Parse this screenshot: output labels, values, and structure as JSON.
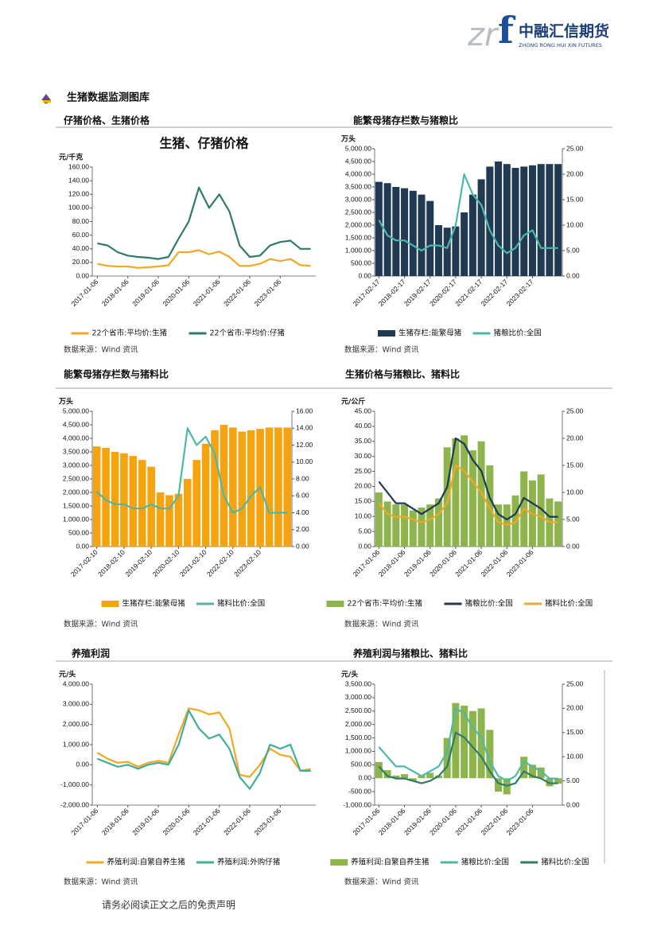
{
  "header": {
    "logo_left": "zr",
    "logo_right": "f",
    "company": "中融汇信期货",
    "company_en": "ZHONG RONG HUI XIN FUTURES"
  },
  "section_title": "生猪数据监测图库",
  "panels": [
    {
      "heading": "仔猪价格、生猪价格",
      "source": "数据来源：Wind 资讯"
    },
    {
      "heading": "能繁母猪存栏数与猪粮比",
      "source": "数据来源：Wind 资讯"
    },
    {
      "heading": "能繁母猪存栏数与猪料比",
      "source": "数据来源：Wind 资讯"
    },
    {
      "heading": "生猪价格与猪粮比、猪料比",
      "source": "数据来源：Wind 资讯"
    },
    {
      "heading": "养殖利润",
      "source": "数据来源：Wind 资讯"
    },
    {
      "heading": "养殖利润与猪粮比、猪料比",
      "source": "数据来源：Wind 资讯"
    }
  ],
  "chart_data": [
    {
      "type": "line",
      "title": "生猪、仔猪价格",
      "unit": "元/千克",
      "categories": [
        "2017-01-06",
        null,
        null,
        "2018-01-06",
        null,
        null,
        "2019-01-06",
        null,
        null,
        "2020-01-06",
        null,
        null,
        "2021-01-06",
        null,
        null,
        "2022-01-06",
        null,
        null,
        "2023-01-06",
        null,
        null,
        null
      ],
      "ylim": [
        0,
        160
      ],
      "yticks": [
        {
          "value": 0,
          "label": "0.00"
        },
        {
          "value": 20,
          "label": "20.00"
        },
        {
          "value": 40,
          "label": "40.00"
        },
        {
          "value": 60,
          "label": "60.00"
        },
        {
          "value": 80,
          "label": "80.00"
        },
        {
          "value": 100,
          "label": "100.00"
        },
        {
          "value": 120,
          "label": "120.00"
        },
        {
          "value": 140,
          "label": "140.00"
        },
        {
          "value": 160,
          "label": "160.00"
        }
      ],
      "series": [
        {
          "name": "22个省市:平均价:生猪",
          "kind": "line",
          "color": "#f5a623",
          "values": [
            18,
            15,
            14,
            14,
            12,
            13,
            14,
            16,
            35,
            35,
            38,
            32,
            36,
            28,
            15,
            15,
            18,
            25,
            22,
            25,
            16,
            15
          ]
        },
        {
          "name": "22个省市:平均价:仔猪",
          "kind": "line",
          "color": "#2e7b6a",
          "values": [
            48,
            45,
            35,
            30,
            28,
            27,
            25,
            28,
            55,
            80,
            130,
            100,
            120,
            95,
            45,
            28,
            30,
            45,
            50,
            52,
            40,
            40
          ]
        }
      ]
    },
    {
      "type": "combo",
      "unit": "万头",
      "categories": [
        "2017-02-17",
        null,
        null,
        "2018-02-17",
        null,
        null,
        "2019-02-17",
        null,
        null,
        "2020-02-17",
        null,
        null,
        "2021-02-17",
        null,
        null,
        "2022-02-17",
        null,
        null,
        "2023-02-17",
        null,
        null,
        null
      ],
      "ylim": [
        0,
        5000
      ],
      "yticks": [
        {
          "value": 0,
          "label": "0.00"
        },
        {
          "value": 500,
          "label": "500.00"
        },
        {
          "value": 1000,
          "label": "1,000.00"
        },
        {
          "value": 1500,
          "label": "1,500.00"
        },
        {
          "value": 2000,
          "label": "2,000.00"
        },
        {
          "value": 2500,
          "label": "2,500.00"
        },
        {
          "value": 3000,
          "label": "3,000.00"
        },
        {
          "value": 3500,
          "label": "3,500.00"
        },
        {
          "value": 4000,
          "label": "4,000.00"
        },
        {
          "value": 4500,
          "label": "4,500.00"
        },
        {
          "value": 5000,
          "label": "5,000.00"
        }
      ],
      "y2lim": [
        0,
        25
      ],
      "y2ticks": [
        {
          "value": 0,
          "label": "0.00"
        },
        {
          "value": 5,
          "label": "5.00"
        },
        {
          "value": 10,
          "label": "10.00"
        },
        {
          "value": 15,
          "label": "15.00"
        },
        {
          "value": 20,
          "label": "20.00"
        },
        {
          "value": 25,
          "label": "25.00"
        }
      ],
      "series": [
        {
          "name": "生猪存栏:能繁母猪",
          "kind": "bar",
          "color": "#1f3a52",
          "values": [
            3700,
            3650,
            3500,
            3450,
            3350,
            3200,
            2950,
            2000,
            1900,
            1950,
            2500,
            3200,
            3800,
            4300,
            4500,
            4400,
            4250,
            4300,
            4350,
            4400,
            4400,
            4400
          ]
        },
        {
          "name": "猪粮比价:全国",
          "kind": "line",
          "axis": "y2",
          "color": "#4cb8a8",
          "values": [
            11,
            8,
            7,
            7,
            6,
            5,
            6,
            6,
            5.5,
            10,
            20,
            16,
            14,
            9,
            6,
            4.5,
            5.5,
            8,
            9,
            5.5,
            5.5,
            5.5
          ]
        }
      ]
    },
    {
      "type": "combo",
      "unit": "万头",
      "categories": [
        "2017-02-10",
        null,
        null,
        "2018-02-10",
        null,
        null,
        "2019-02-10",
        null,
        null,
        "2020-02-10",
        null,
        null,
        "2021-02-10",
        null,
        null,
        "2022-02-10",
        null,
        null,
        "2023-02-10",
        null,
        null,
        null
      ],
      "ylim": [
        0,
        5000
      ],
      "yticks": [
        {
          "value": 0,
          "label": "0.00"
        },
        {
          "value": 500,
          "label": "500.00"
        },
        {
          "value": 1000,
          "label": "1,000.00"
        },
        {
          "value": 1500,
          "label": "1,500.00"
        },
        {
          "value": 2000,
          "label": "2,000.00"
        },
        {
          "value": 2500,
          "label": "2,500.00"
        },
        {
          "value": 3000,
          "label": "3,000.00"
        },
        {
          "value": 3500,
          "label": "3,500.00"
        },
        {
          "value": 4000,
          "label": "4,000.00"
        },
        {
          "value": 4500,
          "label": "4,500.00"
        },
        {
          "value": 5000,
          "label": "5,000.00"
        }
      ],
      "y2lim": [
        0,
        16
      ],
      "y2ticks": [
        {
          "value": 0,
          "label": "0.00"
        },
        {
          "value": 2,
          "label": "2.00"
        },
        {
          "value": 4,
          "label": "4.00"
        },
        {
          "value": 6,
          "label": "6.00"
        },
        {
          "value": 8,
          "label": "8.00"
        },
        {
          "value": 10,
          "label": "10.00"
        },
        {
          "value": 12,
          "label": "12.00"
        },
        {
          "value": 14,
          "label": "14.00"
        },
        {
          "value": 16,
          "label": "16.00"
        }
      ],
      "series": [
        {
          "name": "生猪存栏:能繁母猪",
          "kind": "bar",
          "color": "#f5a30f",
          "values": [
            3700,
            3650,
            3500,
            3450,
            3350,
            3200,
            2950,
            2000,
            1900,
            1950,
            2500,
            3200,
            3800,
            4300,
            4500,
            4400,
            4250,
            4300,
            4350,
            4400,
            4400,
            4400
          ]
        },
        {
          "name": "猪料比价:全国",
          "kind": "line",
          "axis": "y2",
          "color": "#4cb8a8",
          "values": [
            6.5,
            5.5,
            5,
            5,
            4.5,
            4.5,
            5,
            4.5,
            4.5,
            6,
            14,
            12,
            13,
            11,
            6,
            4,
            4.5,
            6,
            7,
            4,
            4,
            4
          ]
        }
      ]
    },
    {
      "type": "combo",
      "unit": "元/公斤",
      "categories": [
        "2017-01-06",
        null,
        null,
        "2018-01-06",
        null,
        null,
        "2019-01-06",
        null,
        null,
        "2020-01-06",
        null,
        null,
        "2021-01-06",
        null,
        null,
        "2022-01-06",
        null,
        null,
        "2023-01-06",
        null,
        null,
        null
      ],
      "ylim": [
        0,
        45
      ],
      "yticks": [
        {
          "value": 0,
          "label": "0.00"
        },
        {
          "value": 5,
          "label": "5.00"
        },
        {
          "value": 10,
          "label": "10.00"
        },
        {
          "value": 15,
          "label": "15.00"
        },
        {
          "value": 20,
          "label": "20.00"
        },
        {
          "value": 25,
          "label": "25.00"
        },
        {
          "value": 30,
          "label": "30.00"
        },
        {
          "value": 35,
          "label": "35.00"
        },
        {
          "value": 40,
          "label": "40.00"
        },
        {
          "value": 45,
          "label": "45.00"
        }
      ],
      "y2lim": [
        0,
        25
      ],
      "y2ticks": [
        {
          "value": 0,
          "label": "0.00"
        },
        {
          "value": 5,
          "label": "5.00"
        },
        {
          "value": 10,
          "label": "10.00"
        },
        {
          "value": 15,
          "label": "15.00"
        },
        {
          "value": 20,
          "label": "20.00"
        },
        {
          "value": 25,
          "label": "25.00"
        }
      ],
      "series": [
        {
          "name": "22个省市:平均价:生猪",
          "kind": "bar",
          "color": "#8db54b",
          "values": [
            18,
            15,
            14,
            14,
            12,
            13,
            14,
            16,
            33,
            36,
            37,
            32,
            35,
            27,
            14,
            14,
            17,
            25,
            22,
            24,
            16,
            15
          ]
        },
        {
          "name": "猪粮比价:全国",
          "kind": "line",
          "axis": "y2",
          "color": "#1f3a52",
          "values": [
            12,
            10,
            8,
            8,
            7,
            6,
            7,
            8,
            11,
            20,
            19,
            16,
            14,
            9,
            6,
            5,
            6,
            9,
            8,
            7,
            5.5,
            5.5
          ]
        },
        {
          "name": "猪料比价:全国",
          "kind": "line",
          "axis": "y2",
          "color": "#f5a623",
          "values": [
            8,
            6,
            5.5,
            5.5,
            5,
            4.5,
            5,
            6,
            8,
            15,
            14,
            12,
            10,
            7,
            4.5,
            4,
            4.5,
            7,
            6,
            5.5,
            4.5,
            4.5
          ]
        }
      ]
    },
    {
      "type": "line",
      "unit": "元/头",
      "categories": [
        "2017-01-06",
        null,
        null,
        "2018-01-06",
        null,
        null,
        "2019-01-06",
        null,
        null,
        "2020-01-06",
        null,
        null,
        "2021-01-06",
        null,
        null,
        "2022-01-06",
        null,
        null,
        "2023-01-06",
        null,
        null,
        null
      ],
      "ylim": [
        -2000,
        4000
      ],
      "yticks": [
        {
          "value": -2000,
          "label": "-2,000.00"
        },
        {
          "value": -1000,
          "label": "-1,000.00"
        },
        {
          "value": 0,
          "label": "0.00"
        },
        {
          "value": 1000,
          "label": "1,000.00"
        },
        {
          "value": 2000,
          "label": "2,000.00"
        },
        {
          "value": 3000,
          "label": "3,000.00"
        },
        {
          "value": 4000,
          "label": "4,000.00"
        }
      ],
      "series": [
        {
          "name": "养殖利润:自繁自养生猪",
          "kind": "line",
          "color": "#f5a623",
          "values": [
            600,
            300,
            100,
            150,
            -100,
            100,
            200,
            100,
            1500,
            2800,
            2700,
            2500,
            2600,
            1800,
            -500,
            -600,
            0,
            800,
            500,
            400,
            -300,
            -200
          ]
        },
        {
          "name": "养殖利润:外购仔猪",
          "kind": "line",
          "color": "#3fae9a",
          "values": [
            300,
            100,
            -100,
            0,
            -200,
            0,
            100,
            0,
            1000,
            2700,
            1800,
            1300,
            1500,
            800,
            -600,
            -1200,
            -400,
            1000,
            800,
            1000,
            -300,
            -300
          ]
        }
      ]
    },
    {
      "type": "combo",
      "unit": "元/头",
      "categories": [
        "2017-01-06",
        null,
        null,
        "2018-01-06",
        null,
        null,
        "2019-01-06",
        null,
        null,
        "2020-01-06",
        null,
        null,
        "2021-01-06",
        null,
        null,
        "2022-01-06",
        null,
        null,
        "2023-01-06",
        null,
        null,
        null
      ],
      "ylim": [
        -1000,
        3500
      ],
      "yticks": [
        {
          "value": -1000,
          "label": "-1,000.00"
        },
        {
          "value": -500,
          "label": "-500.00"
        },
        {
          "value": 0,
          "label": "0.00"
        },
        {
          "value": 500,
          "label": "500.00"
        },
        {
          "value": 1000,
          "label": "1,000.00"
        },
        {
          "value": 1500,
          "label": "1,500.00"
        },
        {
          "value": 2000,
          "label": "2,000.00"
        },
        {
          "value": 2500,
          "label": "2,500.00"
        },
        {
          "value": 3000,
          "label": "3,000.00"
        },
        {
          "value": 3500,
          "label": "3,500.00"
        }
      ],
      "y2lim": [
        0,
        25
      ],
      "y2ticks": [
        {
          "value": 0,
          "label": "0.00"
        },
        {
          "value": 5,
          "label": "5.00"
        },
        {
          "value": 10,
          "label": "10.00"
        },
        {
          "value": 15,
          "label": "15.00"
        },
        {
          "value": 20,
          "label": "20.00"
        },
        {
          "value": 25,
          "label": "25.00"
        }
      ],
      "series": [
        {
          "name": "养殖利润:自繁自养生猪",
          "kind": "bar",
          "color": "#8db54b",
          "values": [
            600,
            300,
            100,
            150,
            -100,
            100,
            200,
            100,
            1500,
            2800,
            2700,
            2500,
            2600,
            1800,
            -500,
            -600,
            0,
            800,
            500,
            400,
            -300,
            -200
          ]
        },
        {
          "name": "猪粮比价:全国",
          "kind": "line",
          "axis": "y2",
          "color": "#4cb8a8",
          "values": [
            12,
            10,
            8,
            8,
            7,
            6,
            7,
            8,
            11,
            20,
            19,
            16,
            14,
            9,
            6,
            5,
            6,
            9,
            8,
            7,
            5.5,
            5.5
          ]
        },
        {
          "name": "猪料比价:全国",
          "kind": "line",
          "axis": "y2",
          "color": "#2e7b6a",
          "values": [
            8,
            6,
            5.5,
            5.5,
            5,
            4.5,
            5,
            6,
            8,
            15,
            14,
            12,
            10,
            7,
            4.5,
            4,
            4.5,
            7,
            6,
            5.5,
            4.5,
            4.5
          ]
        }
      ]
    }
  ],
  "footer": "请务必阅读正文之后的免责声明"
}
